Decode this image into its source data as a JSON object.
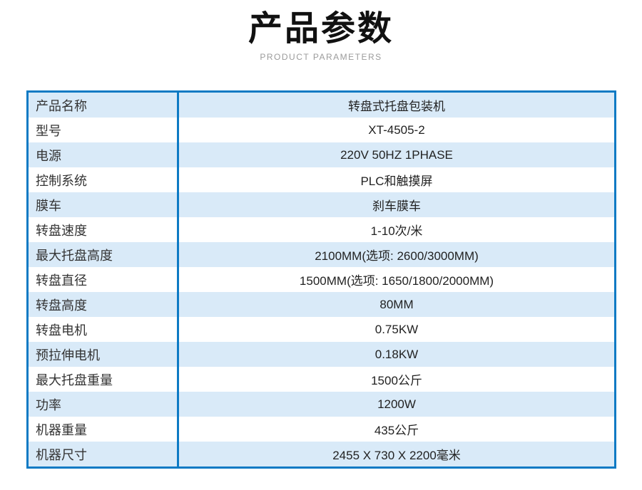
{
  "header": {
    "title": "产品参数",
    "subtitle": "PRODUCT PARAMETERS"
  },
  "table": {
    "rows": [
      {
        "label": "产品名称",
        "value": "转盘式托盘包装机"
      },
      {
        "label": "型号",
        "value": "XT-4505-2"
      },
      {
        "label": "电源",
        "value": "220V 50HZ 1PHASE"
      },
      {
        "label": "控制系统",
        "value": "PLC和触摸屏"
      },
      {
        "label": "膜车",
        "value": "刹车膜车"
      },
      {
        "label": "转盘速度",
        "value": "1-10次/米"
      },
      {
        "label": "最大托盘高度",
        "value": "2100MM(选项: 2600/3000MM)"
      },
      {
        "label": "转盘直径",
        "value": "1500MM(选项: 1650/1800/2000MM)"
      },
      {
        "label": "转盘高度",
        "value": "80MM"
      },
      {
        "label": "转盘电机",
        "value": "0.75KW"
      },
      {
        "label": "预拉伸电机",
        "value": "0.18KW"
      },
      {
        "label": "最大托盘重量",
        "value": "1500公斤"
      },
      {
        "label": "功率",
        "value": "1200W"
      },
      {
        "label": "机器重量",
        "value": "435公斤"
      },
      {
        "label": "机器尺寸",
        "value": "2455 X 730 X 2200毫米"
      }
    ]
  },
  "colors": {
    "accent_blue": "#0d7ac4",
    "row_alt_background": "#d9eaf8",
    "title_color": "#111111",
    "subtitle_color": "#9b9b9b"
  }
}
